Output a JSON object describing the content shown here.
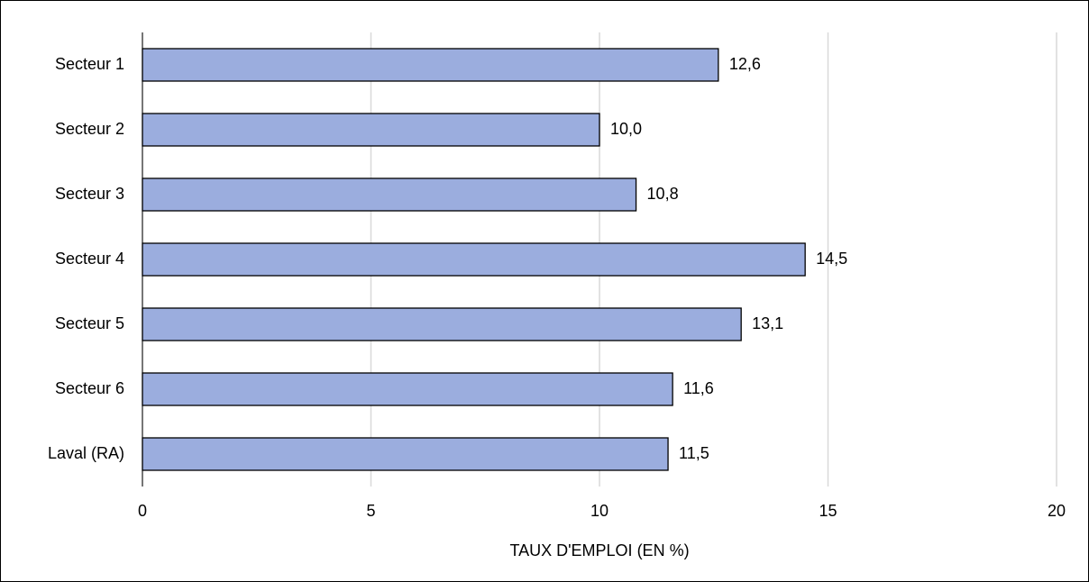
{
  "chart_data": {
    "type": "bar",
    "orientation": "horizontal",
    "categories": [
      "Secteur 1",
      "Secteur 2",
      "Secteur 3",
      "Secteur 4",
      "Secteur 5",
      "Secteur 6",
      "Laval (RA)"
    ],
    "values": [
      12.6,
      10.0,
      10.8,
      14.5,
      13.1,
      11.6,
      11.5
    ],
    "value_labels": [
      "12,6",
      "10,0",
      "10,8",
      "14,5",
      "13,1",
      "11,6",
      "11,5"
    ],
    "color": "#9badde",
    "xlabel": "TAUX D'EMPLOI (EN %)",
    "xlim": [
      0,
      20
    ],
    "xticks": [
      0,
      5,
      10,
      15,
      20
    ],
    "grid": true
  }
}
